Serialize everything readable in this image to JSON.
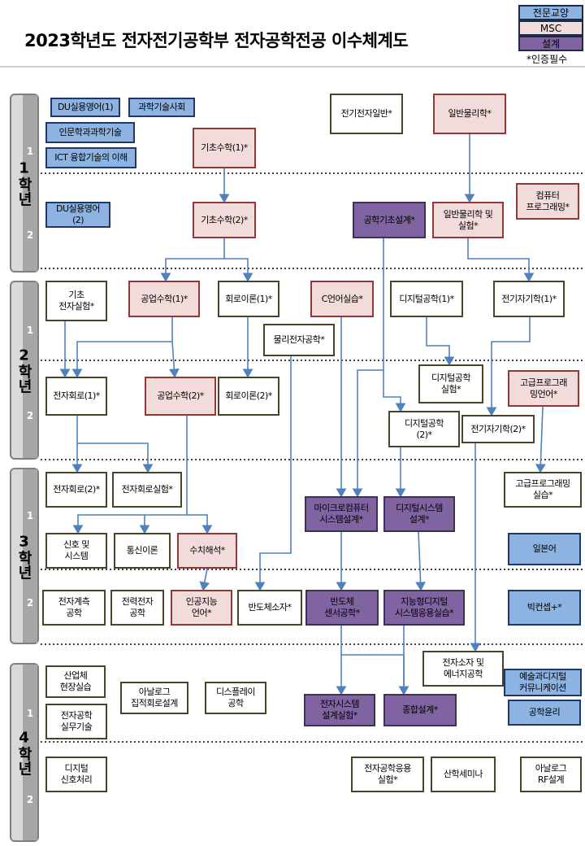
{
  "header": {
    "title": "2023학년도 전자전기공학부 전자공학전공 이수체계도",
    "legend": [
      "전문교양",
      "MSC",
      "설계"
    ],
    "note": "*인증필수"
  },
  "years": [
    {
      "label": "1학년",
      "semesters": [
        "1",
        "2"
      ]
    },
    {
      "label": "2학년",
      "semesters": [
        "1",
        "2"
      ]
    },
    {
      "label": "3학년",
      "semesters": [
        "1",
        "2"
      ]
    },
    {
      "label": "4학년",
      "semesters": [
        "1",
        "2"
      ]
    }
  ],
  "nodes": [
    {
      "label": "DU실용영어(1)"
    },
    {
      "label": "과학기술사회"
    },
    {
      "label": "인문학과과학기술"
    },
    {
      "label": "ICT 융합기술의 이해"
    },
    {
      "label": "기초수학(1)*"
    },
    {
      "label": "전기전자일반*"
    },
    {
      "label": "일반물리학*"
    },
    {
      "label": "DU실용영어\n(2)"
    },
    {
      "label": "기초수학(2)*"
    },
    {
      "label": "공학기초설계*"
    },
    {
      "label": "일반물리학 및\n실험*"
    },
    {
      "label": "컴퓨터\n프로그래밍*"
    },
    {
      "label": "기초\n전자실험*"
    },
    {
      "label": "공업수학(1)*"
    },
    {
      "label": "회로이론(1)*"
    },
    {
      "label": "C언어실습*"
    },
    {
      "label": "디지털공학(1)*"
    },
    {
      "label": "전기자기학(1)*"
    },
    {
      "label": "물리전자공학*"
    },
    {
      "label": "디지털공학\n실험*"
    },
    {
      "label": "고급프로그래\n밍언어*"
    },
    {
      "label": "전자회로(1)*"
    },
    {
      "label": "공업수학(2)*"
    },
    {
      "label": "회로이론(2)*"
    },
    {
      "label": "디지털공학\n(2)*"
    },
    {
      "label": "전기자기학(2)*"
    },
    {
      "label": "전자회로(2)*"
    },
    {
      "label": "전자회로실험*"
    },
    {
      "label": "마이크로컴퓨터\n시스템설계*"
    },
    {
      "label": "디지털시스템\n설계*"
    },
    {
      "label": "고급프로그래밍\n실습*"
    },
    {
      "label": "신호 및\n시스템"
    },
    {
      "label": "통신이론"
    },
    {
      "label": "수치해석*"
    },
    {
      "label": "일본어"
    },
    {
      "label": "전자계측\n공학"
    },
    {
      "label": "전력전자\n공학"
    },
    {
      "label": "인공지능\n언어*"
    },
    {
      "label": "반도체소자*"
    },
    {
      "label": "반도체\n센서공학*"
    },
    {
      "label": "지능형디지털\n시스템응용실습*"
    },
    {
      "label": "빅컨셉+*"
    },
    {
      "label": "산업체\n현장실습"
    },
    {
      "label": "아날로그\n집적회로설계"
    },
    {
      "label": "디스플레이\n공학"
    },
    {
      "label": "전자소자 및\n에너지공학"
    },
    {
      "label": "예술과디지털\n커뮤니케이션"
    },
    {
      "label": "전자공학\n실무기술"
    },
    {
      "label": "전자시스템\n설계실험*"
    },
    {
      "label": "종합설계*"
    },
    {
      "label": "공학윤리"
    },
    {
      "label": "디지털\n신호처리"
    },
    {
      "label": "전자공학응용\n실험*"
    },
    {
      "label": "산학세미나"
    },
    {
      "label": "아날로그\nRF설계"
    }
  ]
}
